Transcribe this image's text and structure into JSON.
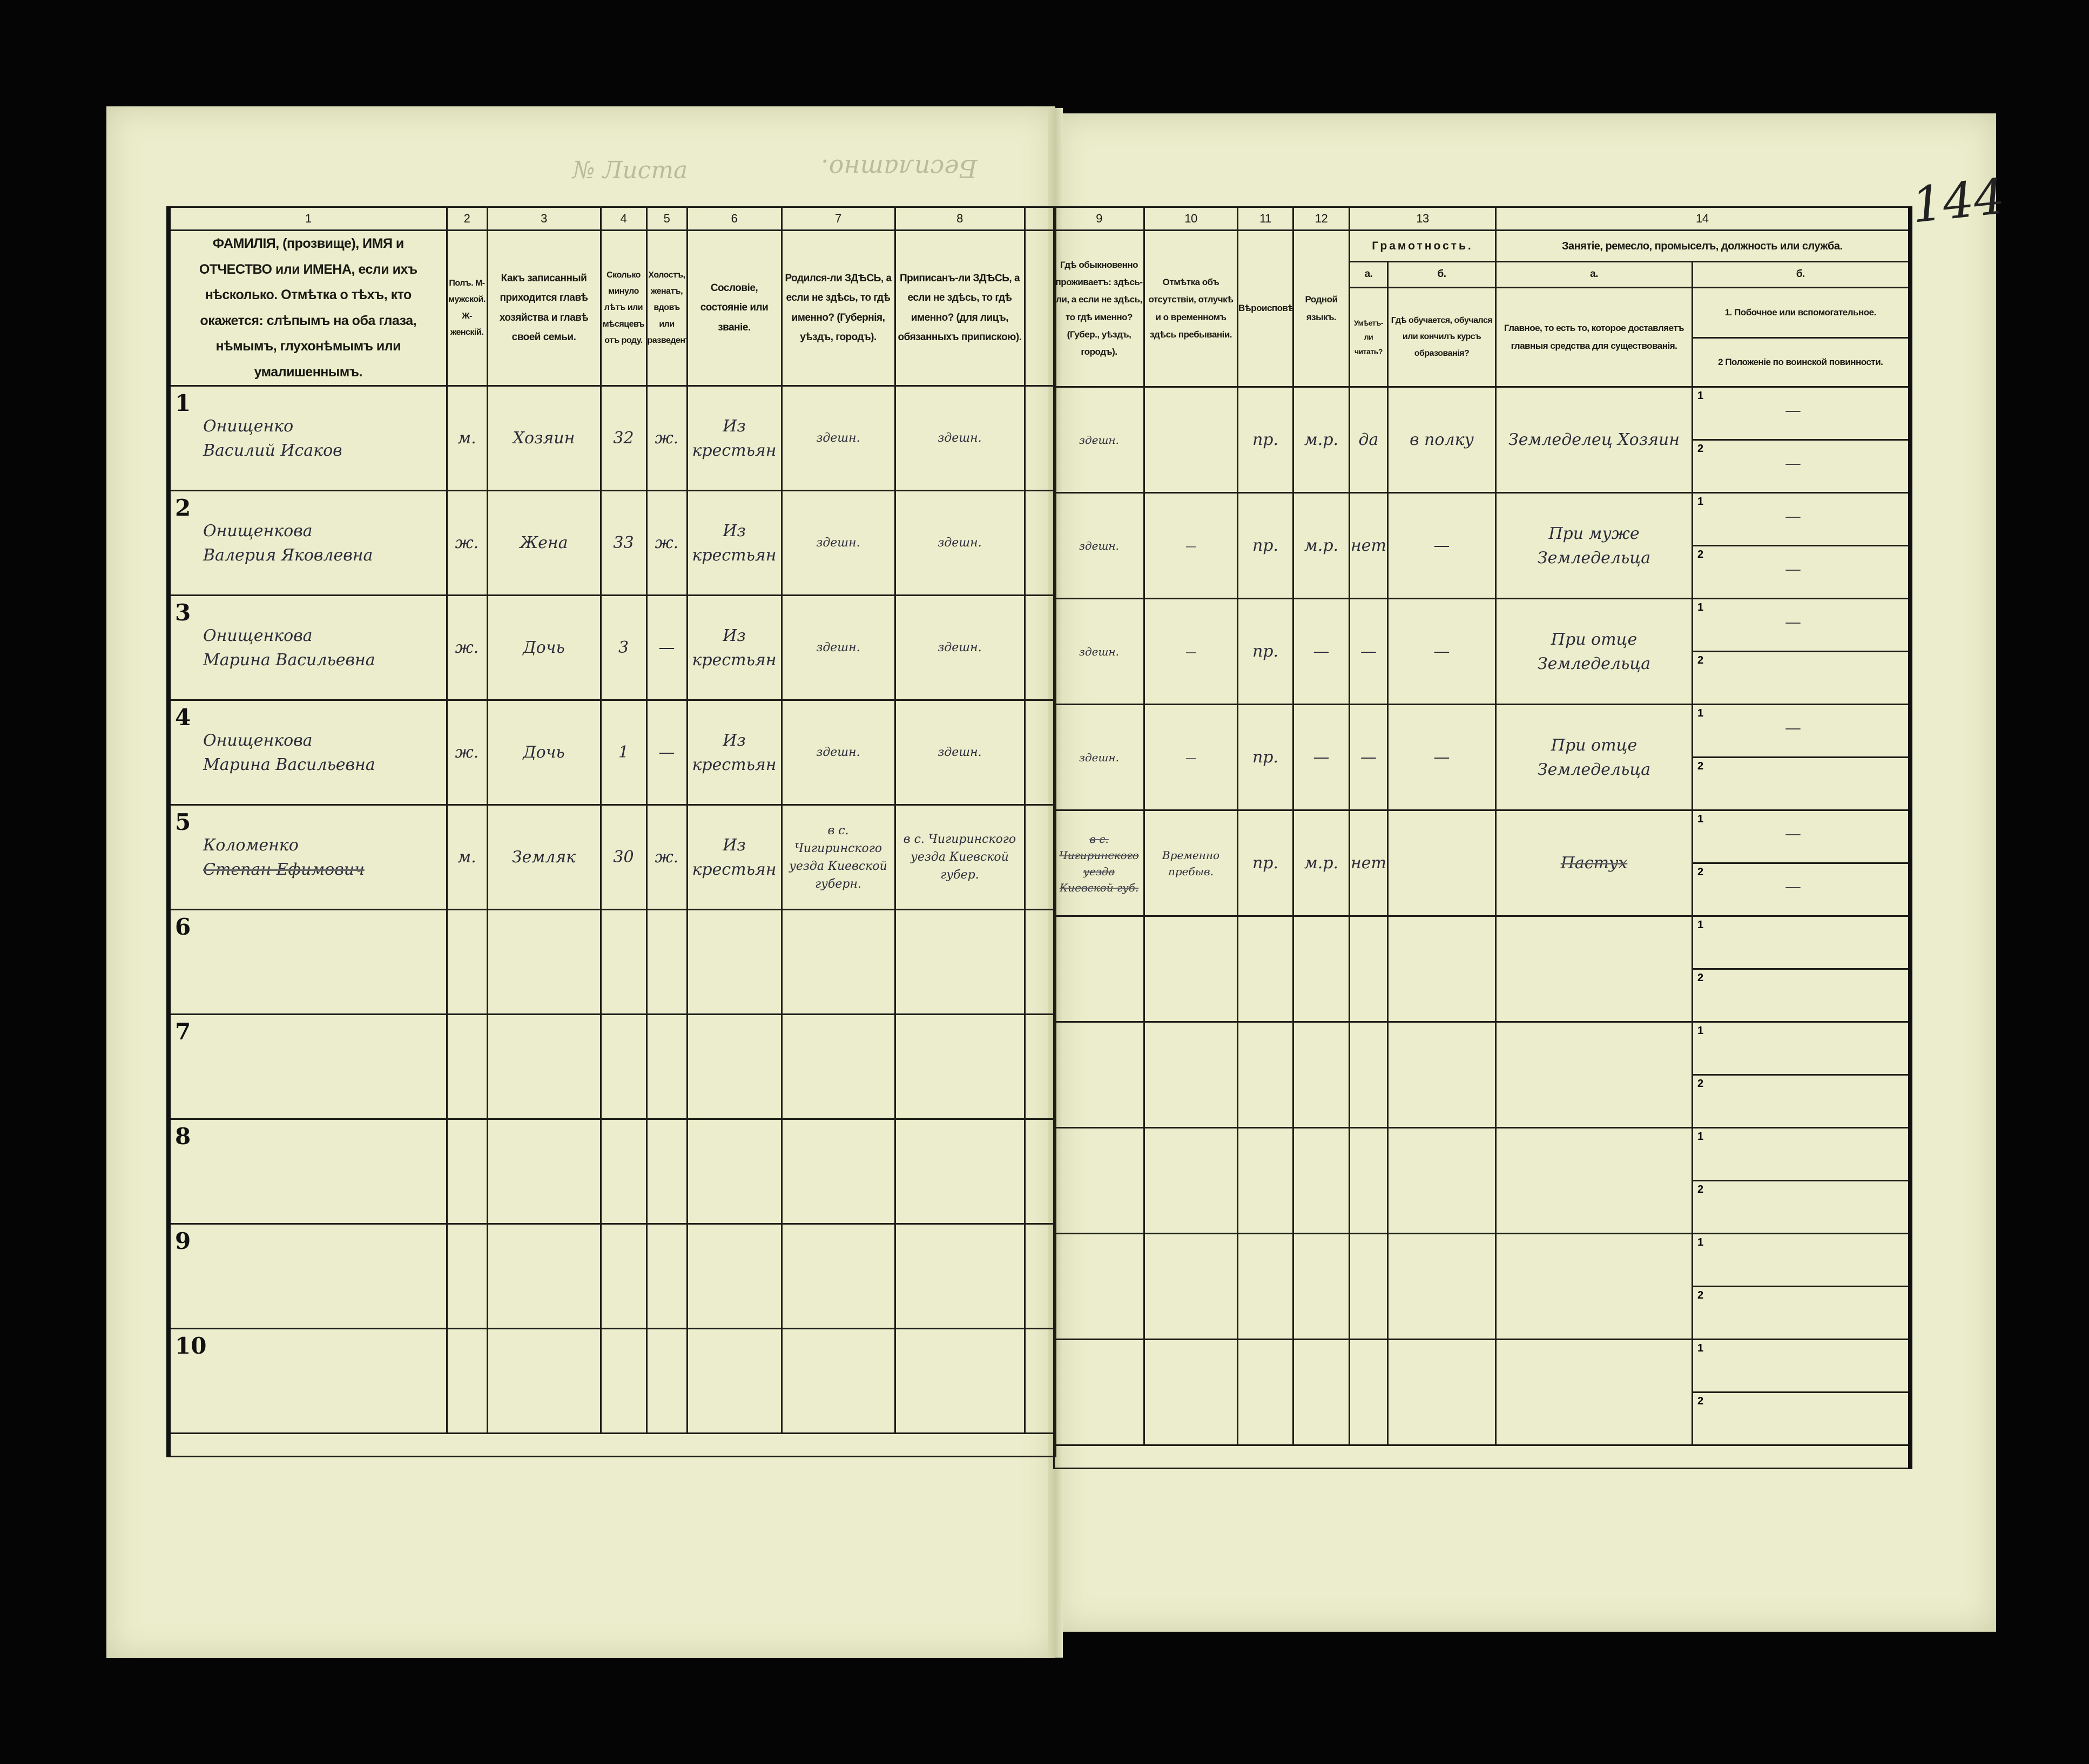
{
  "document": {
    "top_left_faint": "Бесплатно.",
    "sheet_label": "№ Листа",
    "archive_page_number": "144"
  },
  "header": {
    "col_numbers": [
      "1",
      "2",
      "3",
      "4",
      "5",
      "6",
      "7",
      "8",
      "",
      "9",
      "10",
      "11",
      "12",
      "13",
      "14"
    ],
    "c1": "ФАМИЛІЯ, (прозвище), ИМЯ и ОТЧЕСТВО или ИМЕНА, если ихъ нѣсколько. Отмѣтка о тѣхъ, кто окажется: слѣпымъ на оба глаза, нѣмымъ, глухонѣмымъ или умалишеннымъ.",
    "c2": "Полъ. М-мужской. Ж-женскій.",
    "c3": "Какъ записанный приходится главѣ хозяйства и главѣ своей семьи.",
    "c4": "Сколько минуло лѣтъ или мѣсяцевъ отъ роду.",
    "c5": "Холостъ, женатъ, вдовъ или разведенъ.",
    "c6": "Сословіе, состояніе или званіе.",
    "c7": "Родился-ли ЗДѢСЬ, а если не здѣсь, то гдѣ именно? (Губернія, уѣздъ, городъ).",
    "c8": "Приписанъ-ли ЗДѢСЬ, а если не здѣсь, то гдѣ именно? (для лицъ, обязанныхъ припискою).",
    "c9": "Гдѣ обыкновенно проживаетъ: здѣсь-ли, а если не здѣсь, то гдѣ именно? (Губер., уѣздъ, городъ).",
    "c10": "Отмѣтка объ отсутствіи, отлучкѣ и о временномъ здѣсь пребываніи.",
    "c11": "Вѣроисповѣданіе.",
    "c12": "Родной языкъ.",
    "c13": "Грамотность.",
    "c13a_letter": "а.",
    "c13a": "Умѣетъ-ли читать?",
    "c13b_letter": "б.",
    "c13b": "Гдѣ обучается, обучался или кончилъ курсъ образованія?",
    "c14": "Занятіе, ремесло, промыселъ, должность или служба.",
    "c14a_letter": "а.",
    "c14a": "Главное, то есть то, которое доставляетъ главныя средства для существованія.",
    "c14b_letter": "б.",
    "c14b1": "1. Побочное или вспомогательное.",
    "c14b2": "2 Положеніе по воинской повинности."
  },
  "rows": [
    {
      "n": "1",
      "surname": "Онищенко",
      "given": "Василий Исаков",
      "sex": "м.",
      "relation": "Хозяин",
      "age": "32",
      "marital": "ж.",
      "estate": "Из крестьян",
      "born": "здешн.",
      "registered": "здешн.",
      "residence": "здешн.",
      "absence": "",
      "religion": "пр.",
      "language": "м.р.",
      "literate": "да",
      "education": "в полку",
      "occupation": "Земледелец Хозяин",
      "sub1": "—",
      "sub2": "—"
    },
    {
      "n": "2",
      "surname": "Онищенкова",
      "given": "Валерия Яковлевна",
      "sex": "ж.",
      "relation": "Жена",
      "age": "33",
      "marital": "ж.",
      "estate": "Из крестьян",
      "born": "здешн.",
      "registered": "здешн.",
      "residence": "здешн.",
      "absence": "—",
      "religion": "пр.",
      "language": "м.р.",
      "literate": "нет",
      "education": "—",
      "occupation": "При муже Земледельца",
      "sub1": "—",
      "sub2": "—"
    },
    {
      "n": "3",
      "surname": "Онищенкова",
      "given": "Марина Васильевна",
      "sex": "ж.",
      "relation": "Дочь",
      "age": "3",
      "marital": "—",
      "estate": "Из крестьян",
      "born": "здешн.",
      "registered": "здешн.",
      "residence": "здешн.",
      "absence": "—",
      "religion": "пр.",
      "language": "—",
      "literate": "—",
      "education": "—",
      "occupation": "При отце Земледельца",
      "sub1": "—",
      "sub2": ""
    },
    {
      "n": "4",
      "surname": "Онищенкова",
      "given": "Марина Васильевна",
      "sex": "ж.",
      "relation": "Дочь",
      "age": "1",
      "marital": "—",
      "estate": "Из крестьян",
      "born": "здешн.",
      "registered": "здешн.",
      "residence": "здешн.",
      "absence": "—",
      "religion": "пр.",
      "language": "—",
      "literate": "—",
      "education": "—",
      "occupation": "При отце Земледельца",
      "sub1": "—",
      "sub2": ""
    },
    {
      "n": "5",
      "surname": "Коломенко",
      "given": "Степан Ефимович",
      "sex": "м.",
      "relation": "Земляк",
      "age": "30",
      "marital": "ж.",
      "estate": "Из крестьян",
      "born": "в с. Чигиринского уезда Киевской губерн.",
      "registered": "в с. Чигиринского уезда Киевской губер.",
      "residence": "в с. Чигиринского уезда Киевской губ.",
      "absence": "Временно пребыв.",
      "religion": "пр.",
      "language": "м.р.",
      "literate": "нет",
      "education": "",
      "occupation": "Пастух",
      "sub1": "—",
      "sub2": "—",
      "struck": true
    },
    {
      "n": "6"
    },
    {
      "n": "7"
    },
    {
      "n": "8"
    },
    {
      "n": "9"
    },
    {
      "n": "10"
    }
  ],
  "sub_labels": [
    "1",
    "2"
  ]
}
